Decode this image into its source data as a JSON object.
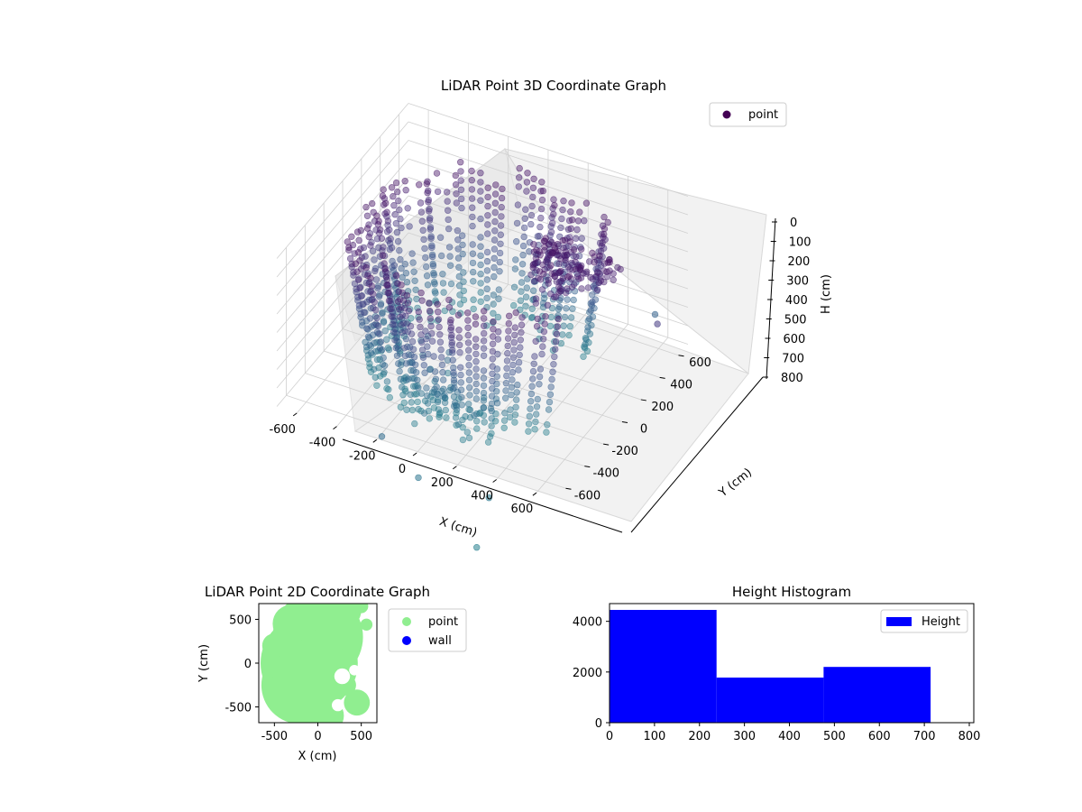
{
  "figure": {
    "background": "#ffffff"
  },
  "chart_data": [
    {
      "type": "scatter",
      "title": "LiDAR Point 3D Coordinate Graph",
      "xlabel": "X (cm)",
      "ylabel": "Y (cm)",
      "zlabel": "H (cm)",
      "xlim": [
        -700,
        700
      ],
      "ylim": [
        -700,
        700
      ],
      "zlim": [
        800,
        0
      ],
      "xticks": [
        "-600",
        "-400",
        "-200",
        "0",
        "200",
        "400",
        "600"
      ],
      "yticks": [
        "-600",
        "-400",
        "-200",
        "0",
        "200",
        "400",
        "600"
      ],
      "zticks": [
        "0",
        "100",
        "200",
        "300",
        "400",
        "500",
        "600",
        "700",
        "800"
      ],
      "grid": true,
      "legend": {
        "position": "top-right",
        "entries": [
          {
            "label": "point",
            "color": "#440154"
          }
        ]
      },
      "series": [
        {
          "name": "point",
          "colormap": "viridis",
          "description_shape": "ring of points radius ~450-650 cm spanning heights ~100-800 cm, dense cluster near top",
          "ring": {
            "radius_min": 450,
            "radius_max": 650,
            "h_min": 100,
            "h_max": 800,
            "theta_start_deg": 40,
            "theta_end_deg": 330
          },
          "outliers": [
            {
              "x": -80,
              "y": -900,
              "h": 620
            },
            {
              "x": 150,
              "y": -1000,
              "h": 700
            },
            {
              "x": 480,
              "y": -950,
              "h": 720
            },
            {
              "x": 560,
              "y": -1250,
              "h": 780
            },
            {
              "x": 620,
              "y": 520,
              "h": 560
            },
            {
              "x": 820,
              "y": 120,
              "h": 300
            }
          ]
        }
      ]
    },
    {
      "type": "scatter",
      "title": "LiDAR Point 2D Coordinate Graph",
      "xlabel": "X (cm)",
      "ylabel": "Y (cm)",
      "xlim": [
        -680,
        680
      ],
      "ylim": [
        -680,
        680
      ],
      "xticks": [
        "-500",
        "0",
        "500"
      ],
      "yticks": [
        "-500",
        "0",
        "500"
      ],
      "legend": {
        "position": "outside-right",
        "entries": [
          {
            "label": "point",
            "color": "#90ee90"
          },
          {
            "label": "wall",
            "color": "#0000ff"
          }
        ]
      },
      "series": [
        {
          "name": "point",
          "color": "#90ee90",
          "region": "filled disc radius ~650 cm with cut-outs on right side"
        }
      ]
    },
    {
      "type": "bar",
      "title": "Height Histogram",
      "xlim": [
        0,
        810
      ],
      "ylim": [
        0,
        4700
      ],
      "xticks": [
        "0",
        "100",
        "200",
        "300",
        "400",
        "500",
        "600",
        "700",
        "800"
      ],
      "yticks": [
        "0",
        "2000",
        "4000"
      ],
      "legend": {
        "position": "top-right",
        "entries": [
          {
            "label": "Height",
            "color": "#0000ff"
          }
        ]
      },
      "series": [
        {
          "name": "Height",
          "color": "#0000ff",
          "bins": [
            {
              "x0": 0,
              "x1": 238,
              "count": 4450
            },
            {
              "x0": 238,
              "x1": 476,
              "count": 1780
            },
            {
              "x0": 476,
              "x1": 714,
              "count": 2200
            }
          ]
        }
      ]
    }
  ]
}
